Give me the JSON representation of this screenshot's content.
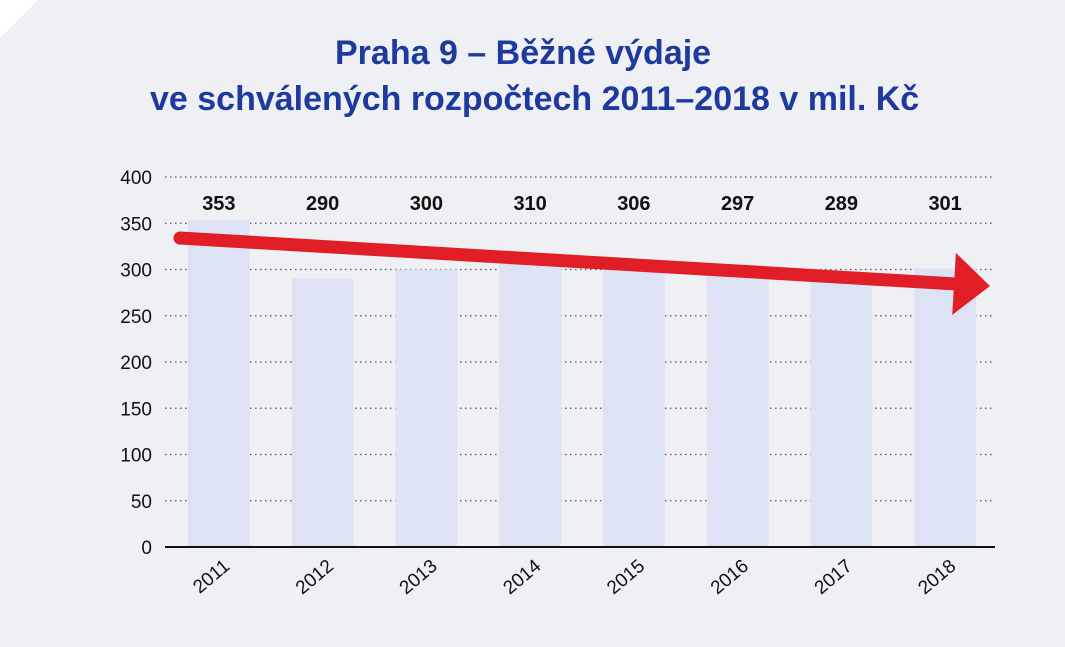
{
  "chart_data": {
    "type": "bar",
    "title_line1": "Praha 9 – Běžné výdaje",
    "title_line2": "ve schválených rozpočtech 2011–2018 v mil. Kč",
    "categories": [
      "2011",
      "2012",
      "2013",
      "2014",
      "2015",
      "2016",
      "2017",
      "2018"
    ],
    "values": [
      353,
      290,
      300,
      310,
      306,
      297,
      289,
      301
    ],
    "value_labels": [
      "353",
      "290",
      "300",
      "310",
      "306",
      "297",
      "289",
      "301"
    ],
    "yticks": [
      "0",
      "50",
      "100",
      "150",
      "200",
      "250",
      "300",
      "350",
      "400"
    ],
    "ylim": [
      0,
      400
    ],
    "grid": true,
    "gridstyle": "dotted",
    "legend": false,
    "trend_arrow": "decreasing",
    "colors": {
      "bar": "#dde3f4",
      "title": "#1f3a9e",
      "arrow": "#e11e26",
      "background": "#eef0f4",
      "grid": "#555555"
    }
  }
}
